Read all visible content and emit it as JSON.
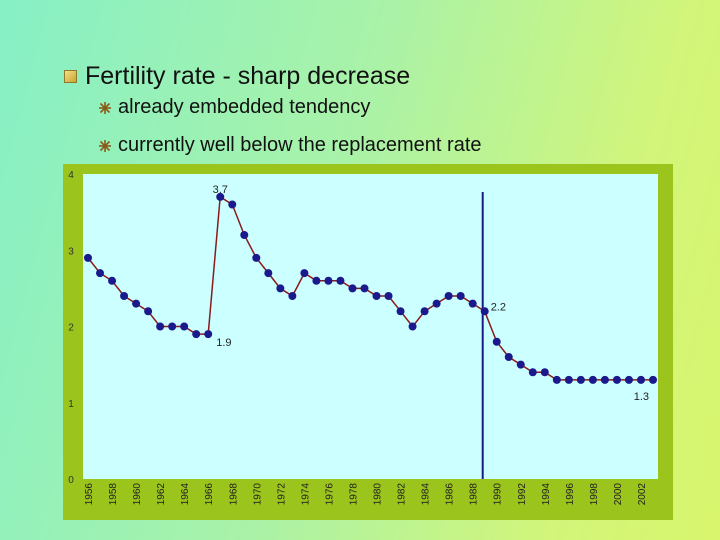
{
  "slide": {
    "title": "Fertility rate - sharp decrease",
    "bullets": [
      "already embedded tendency",
      "currently well below the replacement rate"
    ]
  },
  "colors": {
    "series": "#1a1a8c",
    "line": "#8b1a1a",
    "plot_bg": "#ccffff",
    "panel": "#9bc41c",
    "marker_line": "#1a1a8c"
  },
  "chart_data": {
    "type": "line",
    "title": "",
    "xlabel": "",
    "ylabel": "",
    "ylim": [
      0,
      4
    ],
    "yticks": [
      0,
      1,
      2,
      3,
      4
    ],
    "grid": false,
    "x": [
      1956,
      1957,
      1958,
      1959,
      1960,
      1961,
      1962,
      1963,
      1964,
      1965,
      1966,
      1967,
      1968,
      1969,
      1970,
      1971,
      1972,
      1973,
      1974,
      1975,
      1976,
      1977,
      1978,
      1979,
      1980,
      1981,
      1982,
      1983,
      1984,
      1985,
      1986,
      1987,
      1988,
      1989,
      1990,
      1991,
      1992,
      1993,
      1994,
      1995,
      1996,
      1997,
      1998,
      1999,
      2000,
      2001,
      2002,
      2003
    ],
    "x_tick_labels": [
      "1956",
      "1958",
      "1960",
      "1962",
      "1964",
      "1966",
      "1968",
      "1970",
      "1972",
      "1974",
      "1976",
      "1978",
      "1980",
      "1982",
      "1984",
      "1986",
      "1988",
      "1990",
      "1992",
      "1994",
      "1996",
      "1998",
      "2000",
      "2002"
    ],
    "series": [
      {
        "values": [
          2.9,
          2.7,
          2.6,
          2.4,
          2.3,
          2.2,
          2.0,
          2.0,
          2.0,
          1.9,
          1.9,
          3.7,
          3.6,
          3.2,
          2.9,
          2.7,
          2.5,
          2.4,
          2.7,
          2.6,
          2.6,
          2.6,
          2.5,
          2.5,
          2.4,
          2.4,
          2.2,
          2.0,
          2.2,
          2.3,
          2.4,
          2.4,
          2.3,
          2.2,
          1.8,
          1.6,
          1.5,
          1.4,
          1.4,
          1.3,
          1.3,
          1.3,
          1.3,
          1.3,
          1.3,
          1.3,
          1.3,
          1.3
        ]
      }
    ],
    "annotations": [
      {
        "x": 1967,
        "y": 3.7,
        "text": "3.7"
      },
      {
        "x": 1966,
        "y": 1.9,
        "text": "1.9"
      },
      {
        "x": 1989,
        "y": 2.2,
        "text": "2.2"
      },
      {
        "x": 2003,
        "y": 1.3,
        "text": "1.3"
      }
    ],
    "vertical_marker_x": 1989
  }
}
